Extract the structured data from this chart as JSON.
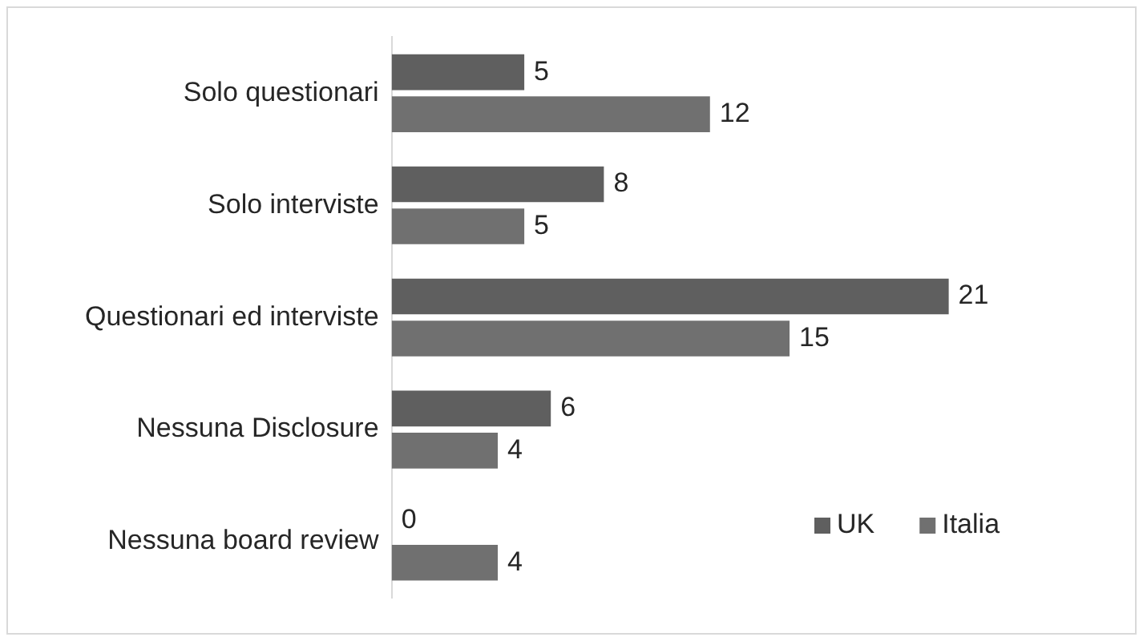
{
  "chart_data": {
    "type": "bar",
    "orientation": "horizontal",
    "relative": false,
    "categories": [
      "Solo questionari",
      "Solo interviste",
      "Questionari ed interviste",
      "Nessuna Disclosure",
      "Nessuna board review"
    ],
    "series": [
      {
        "name": "UK",
        "color": "#5f5f5f",
        "values": [
          5,
          8,
          21,
          6,
          0
        ]
      },
      {
        "name": "Italia",
        "color": "#707070",
        "values": [
          12,
          5,
          15,
          4,
          4
        ]
      }
    ],
    "data_labels": true,
    "legend": "bottom right",
    "grid": false
  }
}
